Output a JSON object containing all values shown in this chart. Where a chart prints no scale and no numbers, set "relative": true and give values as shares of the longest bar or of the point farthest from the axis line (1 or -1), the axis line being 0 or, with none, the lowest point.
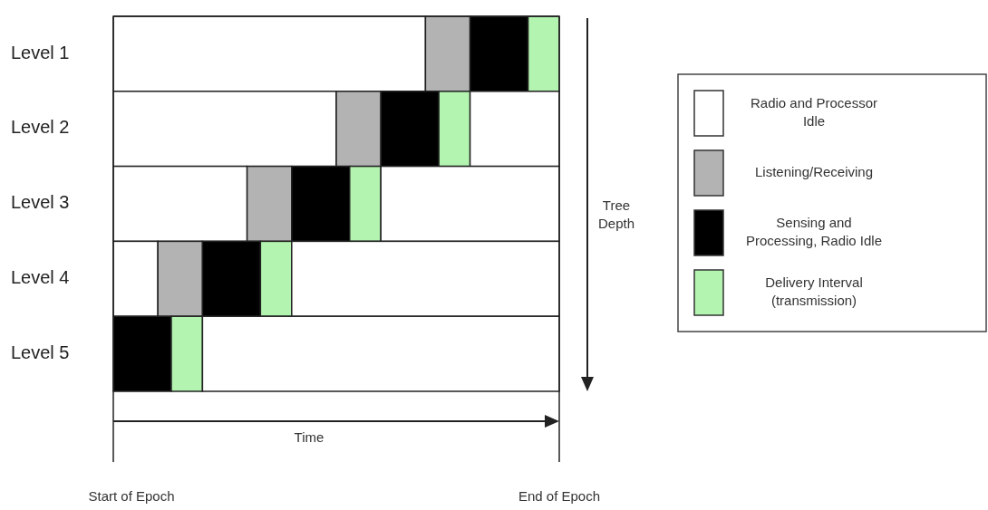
{
  "chart_data": {
    "type": "bar",
    "orientation": "horizontal",
    "stacked": true,
    "relative": true,
    "legend": "right",
    "categories": [
      "Level 1",
      "Level 2",
      "Level 3",
      "Level 4",
      "Level 5"
    ],
    "series": [
      {
        "name": "Radio and Processor Idle",
        "color": "#ffffff",
        "values": [
          0.7,
          0.5,
          0.3,
          0.1,
          0
        ]
      },
      {
        "name": "Listening/Receiving",
        "color": "#b3b3b3",
        "values": [
          0.1,
          0.1,
          0.1,
          0.1,
          0
        ]
      },
      {
        "name": "Sensing and Processing, Radio Idle",
        "color": "#000000",
        "values": [
          0.13,
          0.13,
          0.13,
          0.13,
          0.13
        ]
      },
      {
        "name": "Delivery Interval (transmission)",
        "color": "#b3f5b0",
        "values": [
          0.07,
          0.07,
          0.07,
          0.07,
          0.07
        ]
      },
      {
        "color": "#ffffff",
        "values": [
          0,
          0.2,
          0.4,
          0.6,
          0.8
        ]
      }
    ],
    "annotations": [
      "Time",
      "Start of Epoch",
      "End of Epoch",
      "Tree Depth"
    ]
  }
}
